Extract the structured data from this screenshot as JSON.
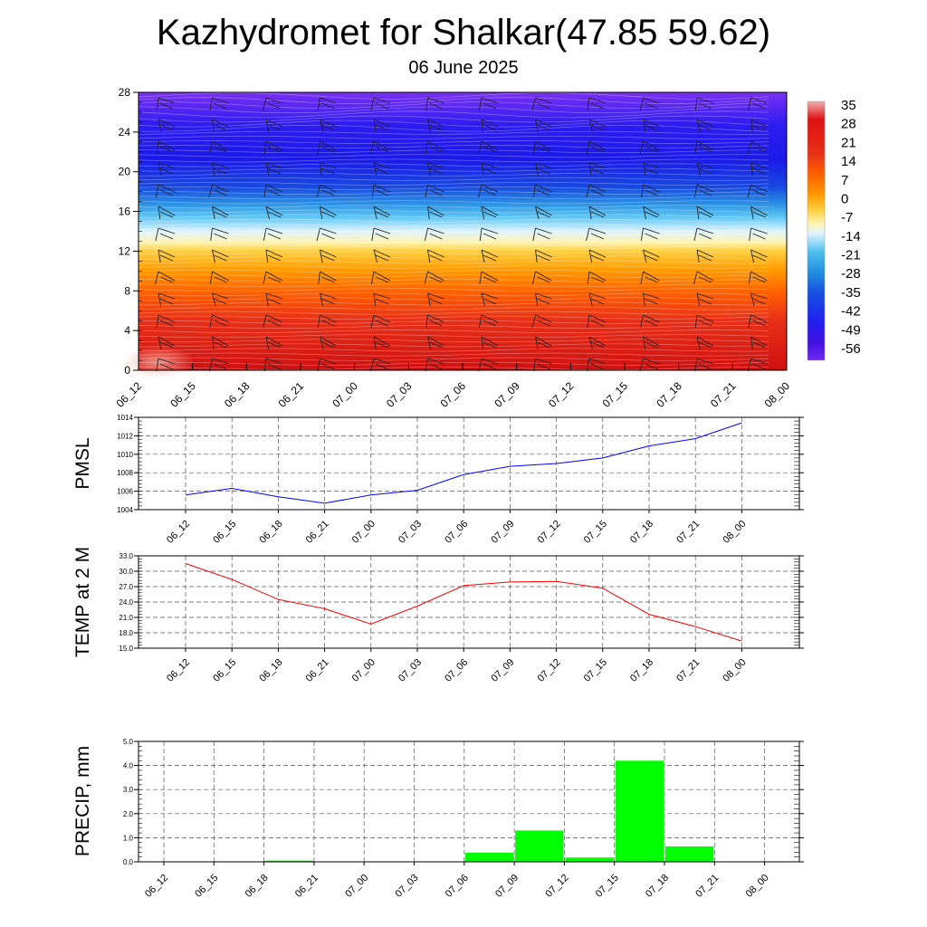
{
  "header": {
    "title": "Kazhydromet for Shalkar(47.85 59.62)",
    "subtitle": "06 June 2025"
  },
  "chart_data": [
    {
      "type": "heatmap",
      "title": "",
      "xlabel": "",
      "ylabel": "",
      "x_ticks": [
        "06_12",
        "06_15",
        "06_18",
        "06_21",
        "07_00",
        "07_03",
        "07_06",
        "07_09",
        "07_12",
        "07_15",
        "07_18",
        "07_21",
        "08_00"
      ],
      "y_ticks": [
        0,
        4,
        8,
        12,
        16,
        20,
        24,
        28
      ],
      "ylim": [
        0,
        28
      ],
      "colorbar": {
        "labels": [
          35,
          28,
          21,
          14,
          7,
          0,
          -7,
          -14,
          -21,
          -28,
          -35,
          -42,
          -49,
          -56
        ],
        "colors": [
          "#ee9090",
          "#dd1010",
          "#e83018",
          "#ff6000",
          "#ff9000",
          "#ffc030",
          "#fff0a0",
          "#e0f4ff",
          "#50c0f0",
          "#2090e0",
          "#1850e0",
          "#2020f0",
          "#4010e0",
          "#7028f0"
        ]
      },
      "field": "temperature profile: ~30 at level 0 decreasing to about -14 near level 13, about -50 at 18-24, about -56 at 28",
      "wind_barbs": true
    },
    {
      "type": "line",
      "ylabel": "PMSL",
      "categories": [
        "06_12",
        "06_15",
        "06_18",
        "06_21",
        "07_00",
        "07_03",
        "07_06",
        "07_09",
        "07_12",
        "07_15",
        "07_18",
        "07_21",
        "08_00"
      ],
      "values": [
        1005.6,
        1006.3,
        1005.4,
        1004.7,
        1005.6,
        1006.1,
        1007.8,
        1008.7,
        1009.0,
        1009.6,
        1010.9,
        1011.7,
        1013.4
      ],
      "ylim": [
        1004,
        1014
      ],
      "yticks": [
        "1004",
        "1006",
        "1008",
        "1010",
        "1012",
        "1014"
      ],
      "color": "#0000ff",
      "grid": true
    },
    {
      "type": "line",
      "ylabel": "TEMP at 2 M",
      "categories": [
        "06_12",
        "06_15",
        "06_18",
        "06_21",
        "07_00",
        "07_03",
        "07_06",
        "07_09",
        "07_12",
        "07_15",
        "07_18",
        "07_21",
        "08_00"
      ],
      "values": [
        31.5,
        28.4,
        24.5,
        22.7,
        19.7,
        23.2,
        27.2,
        27.9,
        28.0,
        26.7,
        21.6,
        19.2,
        16.4
      ],
      "ylim": [
        15,
        33
      ],
      "yticks": [
        "15.0",
        "18.0",
        "21.0",
        "24.0",
        "27.0",
        "30.0",
        "33.0"
      ],
      "color": "#ff0000",
      "grid": true
    },
    {
      "type": "bar",
      "ylabel": "PRECIP, mm",
      "categories": [
        "06_12",
        "06_15",
        "06_18",
        "06_21",
        "07_00",
        "07_03",
        "07_06",
        "07_09",
        "07_12",
        "07_15",
        "07_18",
        "07_21",
        "08_00"
      ],
      "values": [
        0,
        0,
        0,
        0.05,
        0,
        0,
        0,
        0.38,
        1.3,
        0.18,
        4.2,
        0.64,
        0
      ],
      "ylim": [
        0,
        5
      ],
      "yticks": [
        "0.0",
        "1.0",
        "2.0",
        "3.0",
        "4.0",
        "5.0"
      ],
      "color": "#00ff00",
      "grid": true
    }
  ]
}
